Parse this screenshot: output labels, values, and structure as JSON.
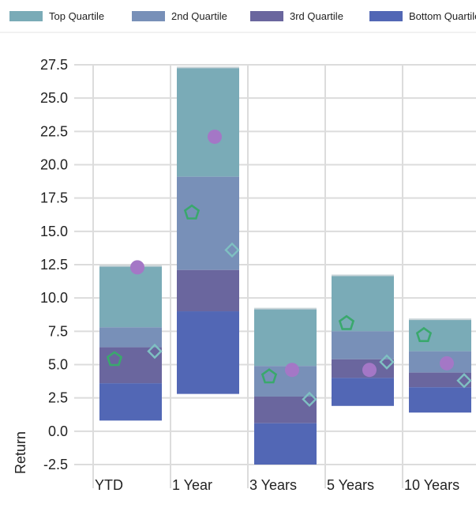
{
  "chart_data": {
    "type": "floating-bar",
    "title": "",
    "xlabel": "",
    "ylabel": "Return",
    "ylim": [
      -2.5,
      27.5
    ],
    "yticks": [
      "27.5",
      "25.0",
      "22.5",
      "20.0",
      "17.5",
      "15.0",
      "12.5",
      "10.0",
      "7.5",
      "5.0",
      "2.5",
      "0.0",
      "-2.5"
    ],
    "grid": true,
    "legend_position": "top",
    "categories": [
      "YTD",
      "1 Year",
      "3 Years",
      "5 Years",
      "10 Years"
    ],
    "quartile_series": [
      {
        "name": "Top Quartile",
        "color": "#7aabb7",
        "ranges": [
          [
            7.8,
            12.4
          ],
          [
            19.1,
            27.3
          ],
          [
            4.9,
            9.2
          ],
          [
            7.5,
            11.7
          ],
          [
            6.0,
            8.4
          ]
        ]
      },
      {
        "name": "2nd Quartile",
        "color": "#7890b8",
        "ranges": [
          [
            6.3,
            7.8
          ],
          [
            12.1,
            19.1
          ],
          [
            2.6,
            4.9
          ],
          [
            5.4,
            7.5
          ],
          [
            4.4,
            6.0
          ]
        ]
      },
      {
        "name": "3rd Quartile",
        "color": "#6a669e",
        "ranges": [
          [
            3.6,
            6.3
          ],
          [
            9.0,
            12.1
          ],
          [
            0.6,
            2.6
          ],
          [
            4.0,
            5.4
          ],
          [
            3.3,
            4.4
          ]
        ]
      },
      {
        "name": "Bottom Quartile",
        "color": "#5267b5",
        "ranges": [
          [
            0.8,
            3.6
          ],
          [
            2.8,
            9.0
          ],
          [
            -2.5,
            0.6
          ],
          [
            1.9,
            4.0
          ],
          [
            1.4,
            3.3
          ]
        ]
      }
    ],
    "markers": [
      {
        "shape": "circle",
        "color": "#a477c6",
        "values": [
          12.3,
          22.1,
          4.6,
          4.6,
          5.1
        ]
      },
      {
        "shape": "pentagon",
        "color": "#3aa86d",
        "values": [
          5.4,
          16.4,
          4.1,
          8.1,
          7.2
        ]
      },
      {
        "shape": "diamond",
        "color": "#7fc0c2",
        "values": [
          6.0,
          13.6,
          2.4,
          5.2,
          3.8
        ]
      }
    ]
  }
}
